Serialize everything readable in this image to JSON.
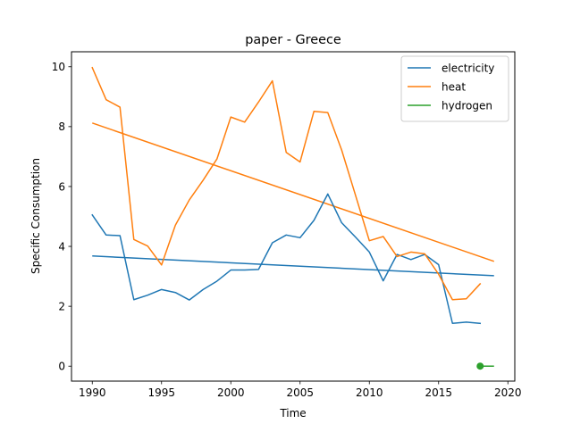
{
  "chart_data": {
    "type": "line",
    "title": "paper - Greece",
    "xlabel": "Time",
    "ylabel": "Specific Consumption",
    "xlim": [
      1988.5,
      2020.5
    ],
    "ylim": [
      -0.5,
      10.5
    ],
    "xticks": [
      1990,
      1995,
      2000,
      2005,
      2010,
      2015,
      2020
    ],
    "yticks": [
      0,
      2,
      4,
      6,
      8,
      10
    ],
    "grid": false,
    "legend_position": "upper right",
    "series": [
      {
        "name": "electricity",
        "color": "#1f77b4",
        "style": "line",
        "x": [
          1990,
          1991,
          1992,
          1993,
          1994,
          1995,
          1996,
          1997,
          1998,
          1999,
          2000,
          2001,
          2002,
          2003,
          2004,
          2005,
          2006,
          2007,
          2008,
          2009,
          2010,
          2011,
          2012,
          2013,
          2014,
          2015,
          2016,
          2017,
          2018
        ],
        "y": [
          5.05,
          4.38,
          4.36,
          2.22,
          2.37,
          2.56,
          2.46,
          2.21,
          2.56,
          2.84,
          3.21,
          3.21,
          3.23,
          4.12,
          4.38,
          4.29,
          4.87,
          5.75,
          4.79,
          4.31,
          3.81,
          2.85,
          3.73,
          3.56,
          3.73,
          3.39,
          1.43,
          1.47,
          1.43
        ]
      },
      {
        "name": "heat",
        "color": "#ff7f0e",
        "style": "line",
        "x": [
          1990,
          1991,
          1992,
          1993,
          1994,
          1995,
          1996,
          1997,
          1998,
          1999,
          2000,
          2001,
          2002,
          2003,
          2004,
          2005,
          2006,
          2007,
          2008,
          2009,
          2010,
          2011,
          2012,
          2013,
          2014,
          2015,
          2016,
          2017,
          2018
        ],
        "y": [
          9.97,
          8.9,
          8.65,
          4.23,
          4.01,
          3.38,
          4.71,
          5.55,
          6.21,
          6.92,
          8.32,
          8.15,
          8.82,
          9.53,
          7.14,
          6.82,
          8.51,
          8.47,
          7.22,
          5.71,
          4.19,
          4.33,
          3.66,
          3.81,
          3.75,
          3.07,
          2.22,
          2.25,
          2.75
        ]
      },
      {
        "name": "hydrogen",
        "color": "#2ca02c",
        "style": "marker",
        "x": [
          2018
        ],
        "y": [
          0.0
        ]
      }
    ],
    "trend_lines": [
      {
        "series": "electricity",
        "color": "#1f77b4",
        "x": [
          1990,
          2019
        ],
        "y": [
          3.68,
          3.02
        ]
      },
      {
        "series": "heat",
        "color": "#ff7f0e",
        "x": [
          1990,
          2019
        ],
        "y": [
          8.12,
          3.5
        ]
      },
      {
        "series": "hydrogen",
        "color": "#2ca02c",
        "x": [
          2018,
          2019
        ],
        "y": [
          0.0,
          0.0
        ]
      }
    ]
  }
}
